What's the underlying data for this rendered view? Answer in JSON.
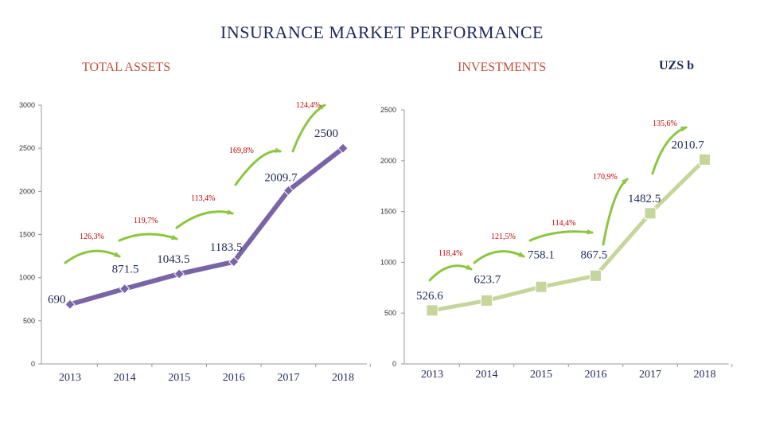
{
  "title": "INSURANCE MARKET PERFORMANCE",
  "units": "UZS b",
  "colors": {
    "assets": "#7a64a8",
    "investments": "#c6d69b",
    "arrow": "#8cc63f",
    "pct": "#c00000"
  },
  "chart_data": [
    {
      "type": "line",
      "title": "TOTAL ASSETS",
      "categories": [
        "2013",
        "2014",
        "2015",
        "2016",
        "2017",
        "2018"
      ],
      "values": [
        690,
        871.5,
        1043.5,
        1183.5,
        2009.7,
        2500
      ],
      "value_labels": [
        "690",
        "871.5",
        "1043.5",
        "1183.5",
        "2009.7",
        "2500"
      ],
      "growth_labels": [
        "126,3%",
        "119,7%",
        "113,4%",
        "169,8%",
        "124,4%"
      ],
      "yticks": [
        "0",
        "500",
        "1000",
        "1500",
        "2000",
        "2500",
        "3000"
      ],
      "ylim": [
        0,
        3000
      ],
      "marker": "diamond"
    },
    {
      "type": "line",
      "title": "INVESTMENTS",
      "categories": [
        "2013",
        "2014",
        "2015",
        "2016",
        "2017",
        "2018"
      ],
      "values": [
        526.6,
        623.7,
        758.1,
        867.5,
        1482.5,
        2010.7
      ],
      "value_labels": [
        "526.6",
        "623.7",
        "758.1",
        "867.5",
        "1482.5",
        "2010.7"
      ],
      "growth_labels": [
        "118,4%",
        "121,5%",
        "114,4%",
        "170,9%",
        "135,6%"
      ],
      "yticks": [
        "0",
        "500",
        "1000",
        "1500",
        "2000",
        "2500"
      ],
      "ylim": [
        0,
        2500
      ],
      "marker": "square"
    }
  ]
}
